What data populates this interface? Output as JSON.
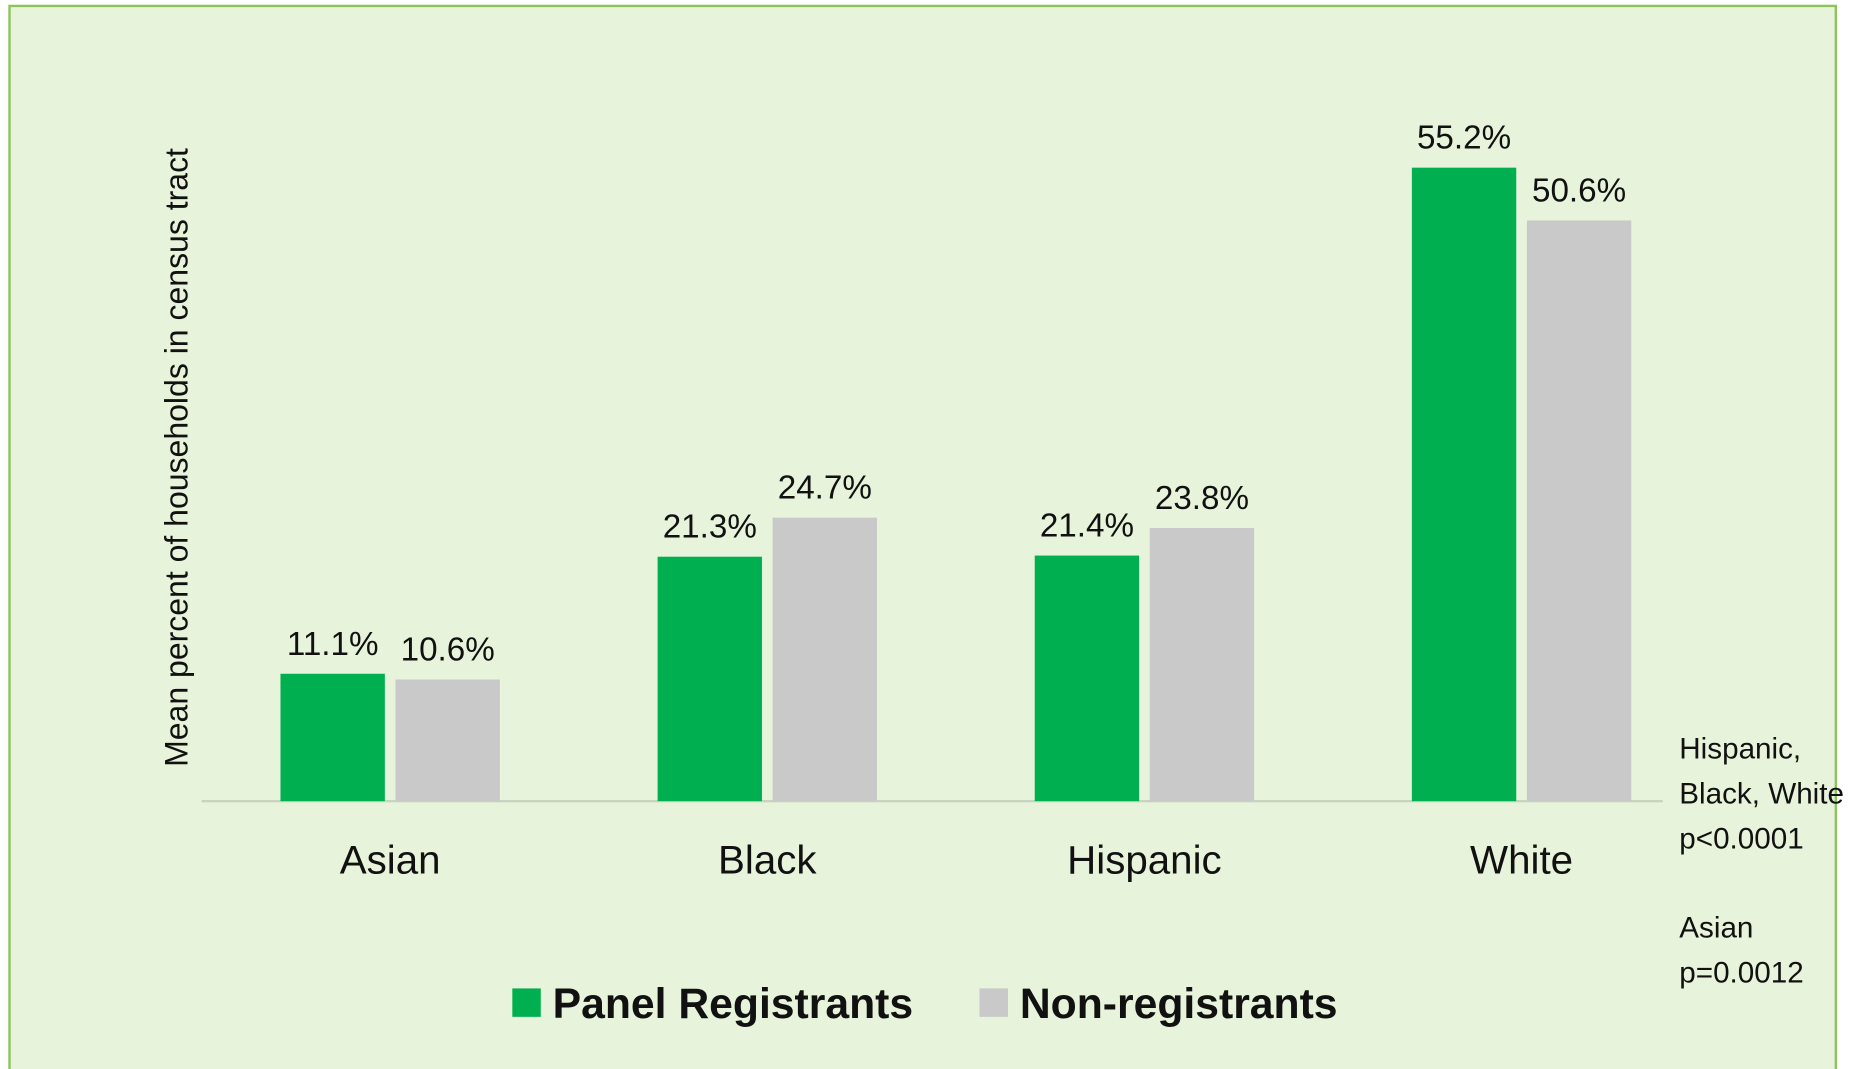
{
  "chart_data": {
    "type": "bar",
    "y_axis_label": "Mean percent of households in census tract",
    "categories": [
      "Asian",
      "Black",
      "Hispanic",
      "White"
    ],
    "series": [
      {
        "name": "Panel Registrants",
        "color": "#00b050",
        "values": [
          11.1,
          21.3,
          21.4,
          55.2
        ],
        "value_labels": [
          "11.1%",
          "21.3%",
          "21.4%",
          "55.2%"
        ]
      },
      {
        "name": "Non-registrants",
        "color": "#c9c9c9",
        "values": [
          10.6,
          24.7,
          23.8,
          50.6
        ],
        "value_labels": [
          "10.6%",
          "24.7%",
          "23.8%",
          "50.6%"
        ]
      }
    ],
    "ylim": [
      0,
      60
    ],
    "annotations": [
      [
        "Hispanic,",
        "Black, White",
        "p<0.0001"
      ],
      [
        "Asian",
        "p=0.0012"
      ]
    ],
    "legend": "bottom"
  }
}
